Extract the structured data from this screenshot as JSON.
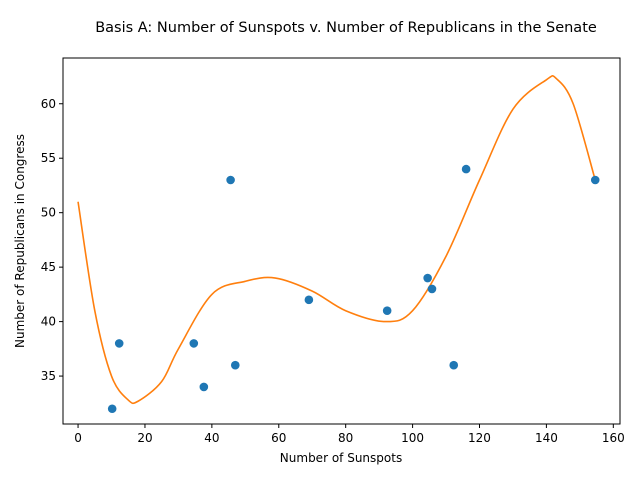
{
  "chart_data": {
    "type": "scatter",
    "title": "Basis A: Number of Sunspots v. Number of Republicans in the Senate",
    "xlabel": "Number of Sunspots",
    "ylabel": "Number of Republicans in Congress",
    "xlim": [
      -4.5,
      162
    ],
    "ylim": [
      30.6,
      64.2
    ],
    "xticks": [
      0,
      20,
      40,
      60,
      80,
      100,
      120,
      140,
      160
    ],
    "yticks": [
      35,
      40,
      45,
      50,
      55,
      60
    ],
    "grid": false,
    "points_color": "#1f77b4",
    "fit_color": "#ff7f0e",
    "series": [
      {
        "kind": "scatter",
        "x": [
          10.2,
          12.3,
          34.6,
          37.6,
          45.6,
          47.0,
          69.0,
          92.4,
          104.5,
          105.8,
          112.3,
          116.0,
          154.6
        ],
        "y": [
          32,
          38,
          38,
          34,
          53,
          36,
          42,
          41,
          44,
          43,
          36,
          54,
          53
        ]
      },
      {
        "kind": "line",
        "x": [
          0,
          5,
          10,
          15,
          18,
          25,
          30,
          40,
          50,
          59,
          70,
          80,
          92,
          100,
          110,
          120,
          130,
          140,
          143,
          148,
          154.6
        ],
        "y": [
          51,
          41,
          35,
          32.8,
          32.7,
          34.5,
          37.5,
          42.5,
          43.7,
          44,
          42.8,
          41,
          40,
          41,
          46,
          53,
          59.5,
          62.2,
          62.3,
          60,
          53
        ]
      }
    ]
  }
}
